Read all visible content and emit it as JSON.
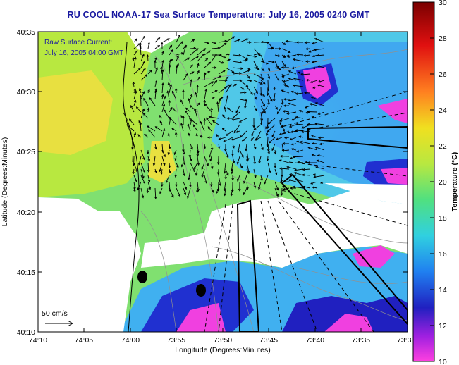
{
  "title": "RU COOL  NOAA-17  Sea Surface Temperature:  July 16, 2005 0240 GMT",
  "overlay": {
    "line1": "Raw Surface Current:",
    "line2": "July 16, 2005 04:00 GMT"
  },
  "scale_label": "50 cm/s",
  "axes": {
    "x_label": "Longitude (Degrees:Minutes)",
    "y_label": "Latitude (Degrees:Minutes)",
    "x_ticks": [
      "74:10",
      "74:05",
      "74:00",
      "73:55",
      "73:50",
      "73:45",
      "73:40",
      "73:35",
      "73:3"
    ],
    "y_ticks": [
      "40:35",
      "40:30",
      "40:25",
      "40:20",
      "40:15",
      "40:10"
    ]
  },
  "colorbar": {
    "label": "Temperature (°C)",
    "ticks": [
      "30",
      "28",
      "26",
      "24",
      "22",
      "20",
      "18",
      "16",
      "14",
      "12",
      "10"
    ]
  },
  "colors": {
    "title": "#1a1aa0",
    "land": "#ffffff",
    "warm": "#e8e040",
    "mid": "#70d870",
    "cool": "#40a0f0",
    "cold": "#2020c8",
    "coldest": "#f040e0"
  }
}
